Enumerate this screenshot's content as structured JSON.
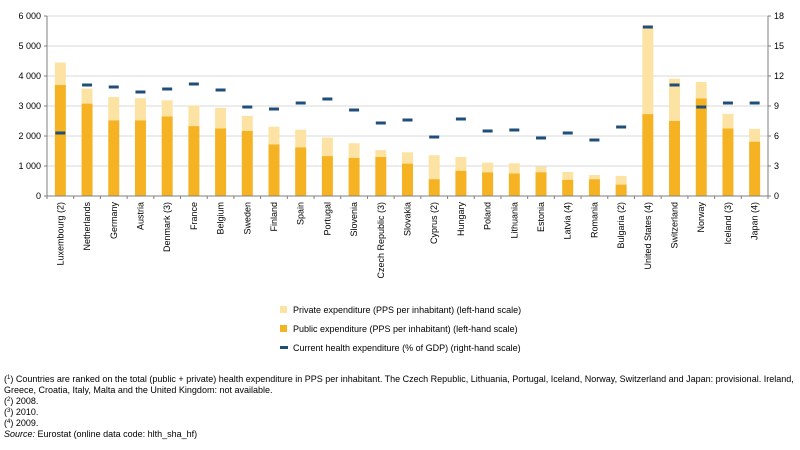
{
  "chart_data": {
    "type": "bar",
    "stacked": true,
    "categories": [
      "Luxembourg (2)",
      "Netherlands",
      "Germany",
      "Austria",
      "Denmark (3)",
      "France",
      "Belgium",
      "Sweden",
      "Finland",
      "Spain",
      "Portugal",
      "Slovenia",
      "Czech Republic (3)",
      "Slovakia",
      "Cyprus (2)",
      "Hungary",
      "Poland",
      "Lithuania",
      "Estonia",
      "Latvia (4)",
      "Romania",
      "Bulgaria (2)",
      "United States (4)",
      "Switzerland",
      "Norway",
      "Iceland (3)",
      "Japan (4)"
    ],
    "series": [
      {
        "name": "Public expenditure (PPS per inhabitant) (left-hand scale)",
        "axis": "left",
        "color": "#f5b324",
        "values": [
          3700,
          3080,
          2520,
          2520,
          2650,
          2330,
          2250,
          2170,
          1720,
          1620,
          1330,
          1270,
          1300,
          1080,
          560,
          840,
          790,
          750,
          790,
          540,
          560,
          380,
          2730,
          2500,
          3250,
          2250,
          1810
        ]
      },
      {
        "name": "Private expenditure (PPS per inhabitant) (left-hand scale)",
        "axis": "left",
        "color": "#fde3a3",
        "values": [
          750,
          500,
          780,
          740,
          540,
          690,
          690,
          500,
          590,
          590,
          620,
          490,
          230,
          380,
          800,
          460,
          320,
          340,
          190,
          260,
          140,
          290,
          2950,
          1410,
          550,
          490,
          430
        ]
      },
      {
        "name": "Current health expenditure (% of GDP) (right-hand scale)",
        "axis": "right",
        "color": "#1f4e79",
        "marker": "dash",
        "values": [
          6.3,
          11.1,
          10.9,
          10.4,
          10.7,
          11.2,
          10.6,
          8.9,
          8.7,
          9.3,
          9.7,
          8.6,
          7.3,
          7.6,
          5.9,
          7.7,
          6.5,
          6.6,
          5.8,
          6.3,
          5.6,
          6.9,
          16.9,
          11.1,
          8.9,
          9.3,
          9.3
        ]
      }
    ],
    "y_left": {
      "min": 0,
      "max": 6000,
      "ticks": [
        "0",
        "1 000",
        "2 000",
        "3 000",
        "4 000",
        "5 000",
        "6 000"
      ]
    },
    "y_right": {
      "min": 0,
      "max": 18,
      "ticks": [
        "0",
        "3",
        "6",
        "9",
        "12",
        "15",
        "18"
      ]
    },
    "grid": true,
    "legend_position": "bottom-center"
  },
  "legend": {
    "private": "Private expenditure (PPS per inhabitant) (left-hand scale)",
    "public": "Public expenditure (PPS per inhabitant) (left-hand scale)",
    "gdp": "Current health expenditure (% of GDP) (right-hand scale)"
  },
  "notes": {
    "n1_mark": "1",
    "n1_text": "Countries are ranked on the total (public + private) health expenditure in PPS per inhabitant. The Czech Republic, Lithuania, Portugal, Iceland, Norway, Switzerland and Japan: provisional. Ireland, Greece, Croatia, Italy, Malta and the United Kingdom: not available.",
    "n2_mark": "2",
    "n2_text": "2008.",
    "n3_mark": "3",
    "n3_text": "2010.",
    "n4_mark": "4",
    "n4_text": "2009.",
    "source_label": "Source:",
    "source_text": "Eurostat (online data code: hlth_sha_hf)"
  },
  "colors": {
    "public": "#f5b324",
    "private": "#fde3a3",
    "gdp": "#1f4e79",
    "grid": "#d9d9d9",
    "axis": "#7f7f7f"
  }
}
